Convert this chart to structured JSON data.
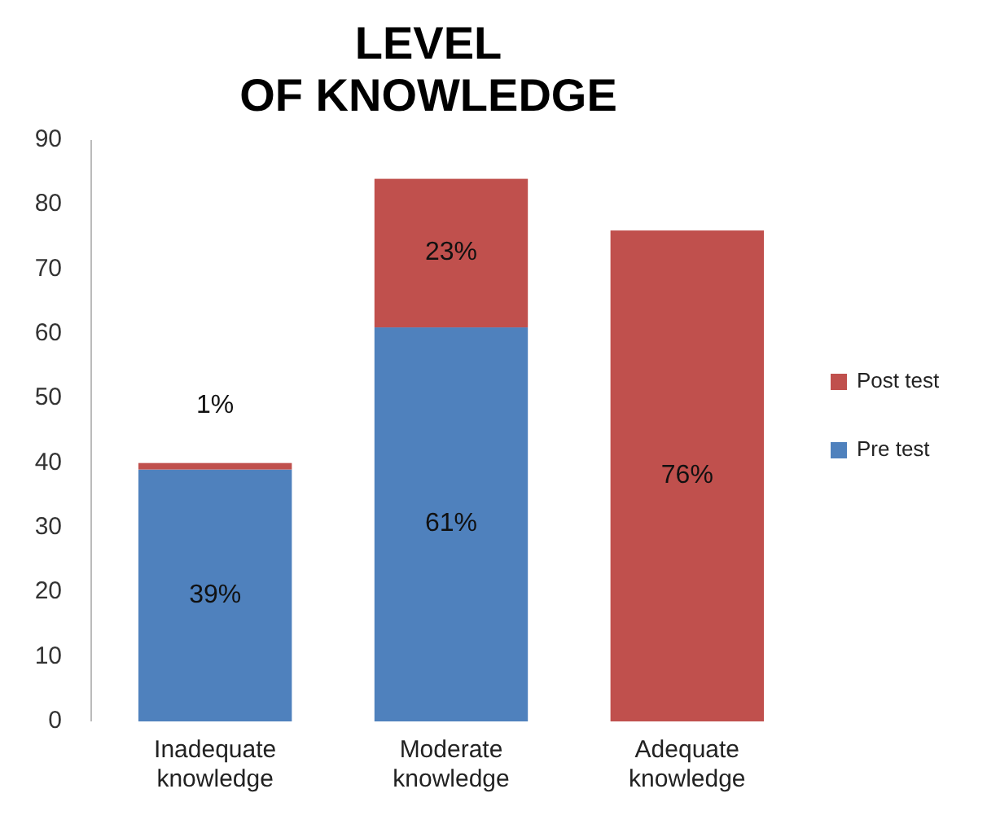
{
  "chart_data": {
    "type": "bar",
    "title": "LEVEL OF KNOWLEDGE",
    "stacked": true,
    "categories": [
      "Inadequate knowledge",
      "Moderate knowledge",
      "Adequate knowledge"
    ],
    "series": [
      {
        "name": "Pre test",
        "color": "#4f81bd",
        "values": [
          39,
          61,
          0
        ],
        "value_labels": [
          "39%",
          "61%",
          null
        ]
      },
      {
        "name": "Post test",
        "color": "#c0504d",
        "values": [
          1,
          23,
          76
        ],
        "value_labels": [
          "1%",
          "23%",
          "76%"
        ]
      }
    ],
    "ylim": [
      0,
      90
    ],
    "yticks": [
      0,
      10,
      20,
      30,
      40,
      50,
      60,
      70,
      80,
      90
    ],
    "grid": false,
    "legend": "right"
  }
}
